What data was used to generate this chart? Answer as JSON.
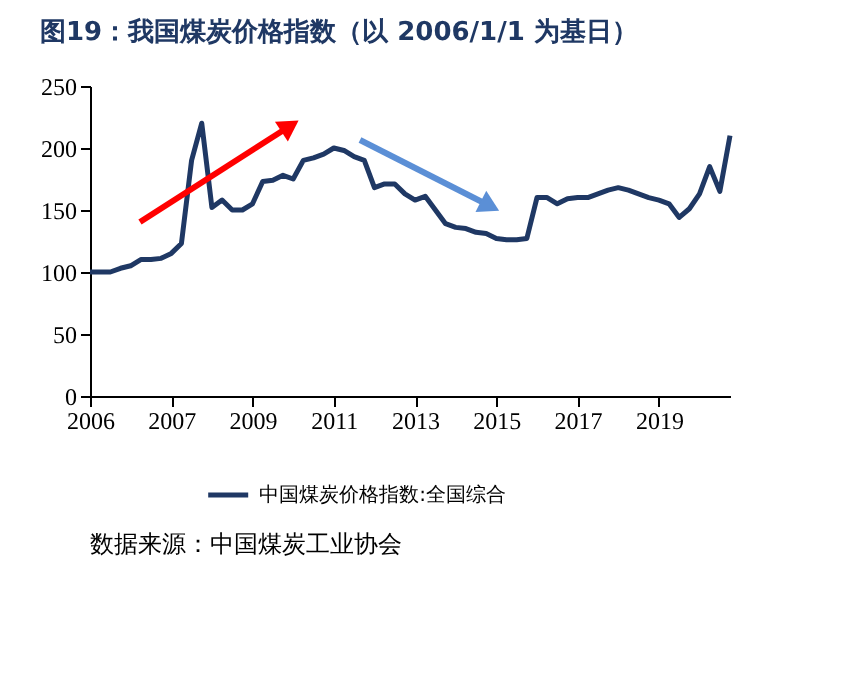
{
  "chart_data": {
    "type": "line",
    "title": "图19：我国煤炭价格指数（以 2006/1/1 为基日）",
    "categories": [
      "2006",
      null,
      null,
      null,
      null,
      null,
      null,
      null,
      "2007",
      null,
      null,
      null,
      null,
      null,
      null,
      null,
      "2009",
      null,
      null,
      null,
      null,
      null,
      null,
      null,
      "2011",
      null,
      null,
      null,
      null,
      null,
      null,
      null,
      "2013",
      null,
      null,
      null,
      null,
      null,
      null,
      null,
      "2015",
      null,
      null,
      null,
      null,
      null,
      null,
      null,
      "2017",
      null,
      null,
      null,
      null,
      null,
      null,
      null,
      "2019",
      null,
      null,
      null,
      null,
      null,
      null,
      null
    ],
    "series": [
      {
        "name": "中国煤炭价格指数:全国综合",
        "color": "#1f3864",
        "values": [
          100,
          100,
          100,
          103,
          105,
          110,
          110,
          111,
          115,
          123,
          190,
          220,
          152,
          158,
          150,
          150,
          155,
          173,
          174,
          178,
          175,
          190,
          192,
          195,
          200,
          198,
          193,
          190,
          168,
          171,
          171,
          163,
          158,
          161,
          150,
          139,
          136,
          135,
          132,
          131,
          127,
          126,
          126,
          127,
          160,
          160,
          155,
          159,
          160,
          160,
          163,
          166,
          168,
          166,
          163,
          160,
          158,
          155,
          144,
          151,
          163,
          185,
          165,
          210
        ]
      }
    ],
    "ylim": [
      0,
      250
    ],
    "yticks": [
      0,
      50,
      100,
      150,
      200,
      250
    ],
    "grid": false,
    "legend": "bottom",
    "marker": "none",
    "line_style": "solid",
    "annotations": [
      "数据来源：中国煤炭工业协会"
    ]
  }
}
